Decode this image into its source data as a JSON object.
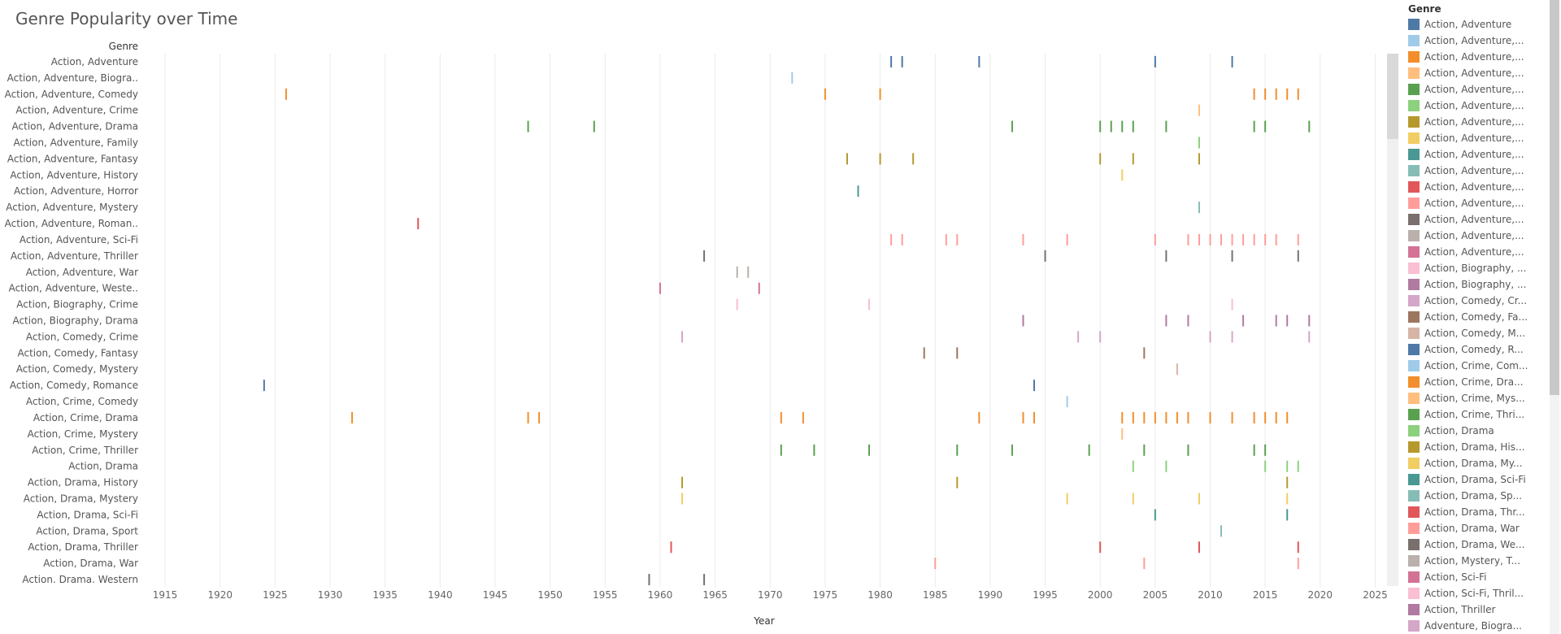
{
  "chart_data": {
    "type": "scatter",
    "title": "Genre Popularity over Time",
    "row_header": "Genre",
    "xlabel": "Year",
    "xlim": [
      1913,
      2026
    ],
    "x_ticks": [
      1915,
      1920,
      1925,
      1930,
      1935,
      1940,
      1945,
      1950,
      1955,
      1960,
      1965,
      1970,
      1975,
      1980,
      1985,
      1990,
      1995,
      2000,
      2005,
      2010,
      2015,
      2020,
      2025
    ],
    "grid": true,
    "legend_title": "Genre",
    "legend_position": "right",
    "genres": [
      {
        "label": "Action, Adventure",
        "color": "#4e79a7",
        "years": [
          1981,
          1982,
          1989,
          2005,
          2012
        ]
      },
      {
        "label": "Action, Adventure, Biogra..",
        "color": "#a0cbe8",
        "years": [
          1972
        ]
      },
      {
        "label": "Action, Adventure, Comedy",
        "color": "#f28e2b",
        "years": [
          1926,
          1975,
          1980,
          2014,
          2015,
          2016,
          2017,
          2018
        ]
      },
      {
        "label": "Action, Adventure, Crime",
        "color": "#ffbe7d",
        "years": [
          2009
        ]
      },
      {
        "label": "Action, Adventure, Drama",
        "color": "#59a14f",
        "years": [
          1948,
          1954,
          1992,
          2000,
          2001,
          2002,
          2003,
          2006,
          2014,
          2015,
          2019
        ]
      },
      {
        "label": "Action, Adventure, Family",
        "color": "#8cd17d",
        "years": [
          2009
        ]
      },
      {
        "label": "Action, Adventure, Fantasy",
        "color": "#b6992d",
        "years": [
          1977,
          1980,
          1983,
          2000,
          2003,
          2009
        ]
      },
      {
        "label": "Action, Adventure, History",
        "color": "#f1ce63",
        "years": [
          2002
        ]
      },
      {
        "label": "Action, Adventure, Horror",
        "color": "#499894",
        "years": [
          1978
        ]
      },
      {
        "label": "Action, Adventure, Mystery",
        "color": "#86bcb6",
        "years": [
          2009
        ]
      },
      {
        "label": "Action, Adventure, Roman..",
        "color": "#e15759",
        "years": [
          1938
        ]
      },
      {
        "label": "Action, Adventure, Sci-Fi",
        "color": "#ff9d9a",
        "years": [
          1981,
          1982,
          1986,
          1987,
          1993,
          1997,
          2005,
          2008,
          2009,
          2010,
          2011,
          2012,
          2013,
          2014,
          2015,
          2016,
          2018
        ]
      },
      {
        "label": "Action, Adventure, Thriller",
        "color": "#79706e",
        "years": [
          1964,
          1995,
          2006,
          2012,
          2018
        ]
      },
      {
        "label": "Action, Adventure, War",
        "color": "#bab0ac",
        "years": [
          1967,
          1968
        ]
      },
      {
        "label": "Action, Adventure, Weste..",
        "color": "#d37295",
        "years": [
          1960,
          1969
        ]
      },
      {
        "label": "Action, Biography, Crime",
        "color": "#fabfd2",
        "years": [
          1967,
          1979,
          2012
        ]
      },
      {
        "label": "Action, Biography, Drama",
        "color": "#b07aa1",
        "years": [
          1993,
          2006,
          2008,
          2013,
          2016,
          2017,
          2019
        ]
      },
      {
        "label": "Action, Comedy, Crime",
        "color": "#d4a6c8",
        "years": [
          1962,
          1998,
          2000,
          2010,
          2012,
          2019
        ]
      },
      {
        "label": "Action, Comedy, Fantasy",
        "color": "#9d7660",
        "years": [
          1984,
          1987,
          2004
        ]
      },
      {
        "label": "Action, Comedy, Mystery",
        "color": "#d7b5a6",
        "years": [
          2007
        ]
      },
      {
        "label": "Action, Comedy, Romance",
        "color": "#4e79a7",
        "years": [
          1924,
          1994
        ]
      },
      {
        "label": "Action, Crime, Comedy",
        "color": "#a0cbe8",
        "years": [
          1997
        ]
      },
      {
        "label": "Action, Crime, Drama",
        "color": "#f28e2b",
        "years": [
          1932,
          1948,
          1949,
          1971,
          1973,
          1989,
          1993,
          1994,
          2002,
          2003,
          2004,
          2005,
          2006,
          2007,
          2008,
          2010,
          2012,
          2014,
          2015,
          2016,
          2017
        ]
      },
      {
        "label": "Action, Crime, Mystery",
        "color": "#ffbe7d",
        "years": [
          2002
        ]
      },
      {
        "label": "Action, Crime, Thriller",
        "color": "#59a14f",
        "years": [
          1971,
          1974,
          1979,
          1987,
          1992,
          1999,
          2004,
          2008,
          2014,
          2015
        ]
      },
      {
        "label": "Action, Drama",
        "color": "#8cd17d",
        "years": [
          2003,
          2006,
          2015,
          2017,
          2018
        ]
      },
      {
        "label": "Action, Drama, History",
        "color": "#b6992d",
        "years": [
          1962,
          1987,
          2017
        ]
      },
      {
        "label": "Action, Drama, Mystery",
        "color": "#f1ce63",
        "years": [
          1962,
          1997,
          2003,
          2009,
          2017
        ]
      },
      {
        "label": "Action, Drama, Sci-Fi",
        "color": "#499894",
        "years": [
          2005,
          2017
        ]
      },
      {
        "label": "Action, Drama, Sport",
        "color": "#86bcb6",
        "years": [
          2011
        ]
      },
      {
        "label": "Action, Drama, Thriller",
        "color": "#e15759",
        "years": [
          1961,
          2000,
          2009,
          2018
        ]
      },
      {
        "label": "Action, Drama, War",
        "color": "#ff9d9a",
        "years": [
          1985,
          2004,
          2018
        ]
      },
      {
        "label": "Action. Drama. Western",
        "color": "#79706e",
        "years": [
          1959,
          1964
        ]
      }
    ],
    "legend_items": [
      {
        "label": "Action, Adventure",
        "color": "#4e79a7"
      },
      {
        "label": "Action, Adventure,...",
        "color": "#a0cbe8"
      },
      {
        "label": "Action, Adventure,...",
        "color": "#f28e2b"
      },
      {
        "label": "Action, Adventure,...",
        "color": "#ffbe7d"
      },
      {
        "label": "Action, Adventure,...",
        "color": "#59a14f"
      },
      {
        "label": "Action, Adventure,...",
        "color": "#8cd17d"
      },
      {
        "label": "Action, Adventure,...",
        "color": "#b6992d"
      },
      {
        "label": "Action, Adventure,...",
        "color": "#f1ce63"
      },
      {
        "label": "Action, Adventure,...",
        "color": "#499894"
      },
      {
        "label": "Action, Adventure,...",
        "color": "#86bcb6"
      },
      {
        "label": "Action, Adventure,...",
        "color": "#e15759"
      },
      {
        "label": "Action, Adventure,...",
        "color": "#ff9d9a"
      },
      {
        "label": "Action, Adventure,...",
        "color": "#79706e"
      },
      {
        "label": "Action, Adventure,...",
        "color": "#bab0ac"
      },
      {
        "label": "Action, Adventure,...",
        "color": "#d37295"
      },
      {
        "label": "Action, Biography, ...",
        "color": "#fabfd2"
      },
      {
        "label": "Action, Biography, ...",
        "color": "#b07aa1"
      },
      {
        "label": "Action, Comedy, Cr...",
        "color": "#d4a6c8"
      },
      {
        "label": "Action, Comedy, Fa...",
        "color": "#9d7660"
      },
      {
        "label": "Action, Comedy, M...",
        "color": "#d7b5a6"
      },
      {
        "label": "Action, Comedy, R...",
        "color": "#4e79a7"
      },
      {
        "label": "Action, Crime, Com...",
        "color": "#a0cbe8"
      },
      {
        "label": "Action, Crime, Dra...",
        "color": "#f28e2b"
      },
      {
        "label": "Action, Crime, Mys...",
        "color": "#ffbe7d"
      },
      {
        "label": "Action, Crime, Thri...",
        "color": "#59a14f"
      },
      {
        "label": "Action, Drama",
        "color": "#8cd17d"
      },
      {
        "label": "Action, Drama, His...",
        "color": "#b6992d"
      },
      {
        "label": "Action, Drama, My...",
        "color": "#f1ce63"
      },
      {
        "label": "Action, Drama, Sci-Fi",
        "color": "#499894"
      },
      {
        "label": "Action, Drama, Sp...",
        "color": "#86bcb6"
      },
      {
        "label": "Action, Drama, Thr...",
        "color": "#e15759"
      },
      {
        "label": "Action, Drama, War",
        "color": "#ff9d9a"
      },
      {
        "label": "Action, Drama, We...",
        "color": "#79706e"
      },
      {
        "label": "Action, Mystery, T...",
        "color": "#bab0ac"
      },
      {
        "label": "Action, Sci-Fi",
        "color": "#d37295"
      },
      {
        "label": "Action, Sci-Fi, Thril...",
        "color": "#fabfd2"
      },
      {
        "label": "Action, Thriller",
        "color": "#b07aa1"
      },
      {
        "label": "Adventure, Biogra...",
        "color": "#d4a6c8"
      }
    ]
  }
}
